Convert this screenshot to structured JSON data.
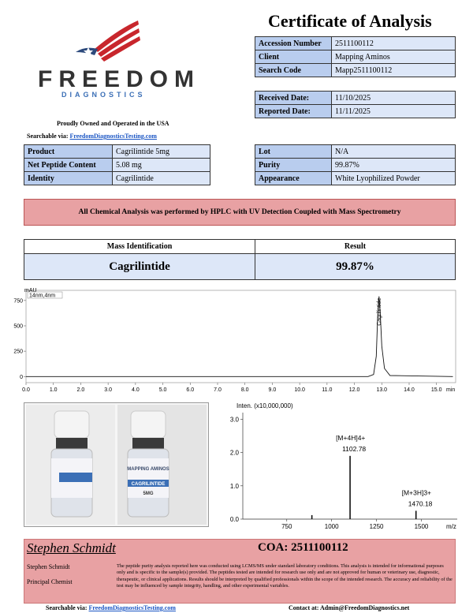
{
  "header": {
    "logo_name": "FREEDOM",
    "logo_sub": "DIAGNOSTICS",
    "tagline": "Proudly Owned and Operated in the USA",
    "search_label": "Searchable via:",
    "search_link": "FreedomDiagnosticsTesting.com",
    "title": "Certificate of Analysis"
  },
  "info_table": {
    "rows": [
      [
        "Accession Number",
        "2511100112"
      ],
      [
        "Client",
        "Mapping Aminos"
      ],
      [
        "Search Code",
        "Mapp2511100112"
      ]
    ]
  },
  "dates_table": {
    "rows": [
      [
        "Received Date:",
        "11/10/2025"
      ],
      [
        "Reported Date:",
        "11/11/2025"
      ]
    ]
  },
  "product_table": {
    "rows": [
      [
        "Product",
        "Cagrilintide 5mg"
      ],
      [
        "Net Peptide Content",
        "5.08 mg"
      ],
      [
        "Identity",
        "Cagrilintide"
      ]
    ]
  },
  "lot_table": {
    "rows": [
      [
        "Lot",
        "N/A"
      ],
      [
        "Purity",
        "99.87%"
      ],
      [
        "Appearance",
        "White Lyophilized Powder"
      ]
    ]
  },
  "banner": "All Chemical Analysis was performed by HPLC with UV Detection Coupled with Mass Spectrometry",
  "result_table": {
    "header": [
      "Mass Identification",
      "Result"
    ],
    "row": [
      "Cagrilintide",
      "99.87%"
    ]
  },
  "chromatogram": {
    "type": "line",
    "y_unit": "mAU",
    "channel": "14nm,4nm",
    "x_unit": "min",
    "peak_label": "Cagrilintide",
    "x": [
      0,
      12.5,
      12.7,
      12.8,
      12.85,
      12.9,
      12.95,
      13.0,
      13.1,
      13.3,
      15.6
    ],
    "values": [
      0,
      0,
      20,
      200,
      600,
      790,
      600,
      300,
      80,
      10,
      0
    ],
    "xlim": [
      0,
      15.7
    ],
    "ylim": [
      -60,
      850
    ],
    "xticks": [
      {
        "value": 0,
        "label": "0.0"
      },
      {
        "value": 1,
        "label": "1.0"
      },
      {
        "value": 2,
        "label": "2.0"
      },
      {
        "value": 3,
        "label": "3.0"
      },
      {
        "value": 4,
        "label": "4.0"
      },
      {
        "value": 5,
        "label": "5.0"
      },
      {
        "value": 6,
        "label": "6.0"
      },
      {
        "value": 7,
        "label": "7.0"
      },
      {
        "value": 8,
        "label": "8.0"
      },
      {
        "value": 9,
        "label": "9.0"
      },
      {
        "value": 10,
        "label": "10.0"
      },
      {
        "value": 11,
        "label": "11.0"
      },
      {
        "value": 12,
        "label": "12.0"
      },
      {
        "value": 13,
        "label": "13.0"
      },
      {
        "value": 14,
        "label": "14.0"
      },
      {
        "value": 15,
        "label": "15.0"
      }
    ],
    "yticks": [
      0,
      250,
      500,
      750
    ]
  },
  "photo": {
    "labels": [
      "MAPPING AMINOS",
      "CAGRILINTIDE",
      "5MG"
    ]
  },
  "mass_spectrum": {
    "type": "bar",
    "y_label": "Inten. (x10,000,000)",
    "x_unit": "m/z",
    "x": [
      890,
      1102.78,
      1470.18
    ],
    "values": [
      0.12,
      1.9,
      0.25
    ],
    "ion_labels": [
      null,
      "[M+4H]4+",
      "[M+3H]3+"
    ],
    "xlim": [
      505,
      1700
    ],
    "ylim": [
      0,
      3.2
    ],
    "xticks": [
      750,
      1000,
      1250,
      1500
    ],
    "yticks": [
      {
        "value": 0,
        "label": "0.0"
      },
      {
        "value": 1,
        "label": "1.0"
      },
      {
        "value": 2,
        "label": "2.0"
      },
      {
        "value": 3,
        "label": "3.0"
      }
    ]
  },
  "footer": {
    "signature": "Stephen Schmidt",
    "coa": "COA: 2511100112",
    "name": "Stephen Schmidt",
    "role": "Principal Chemist",
    "disclaimer": "The peptide purity analysis reported here was conducted using LCMS/MS under standard laboratory conditions. This analysis is intended for informational purposes only and is specific to the sample(s) provided. The peptides tested are intended for research use only and are not approved for human or veterinary use, diagnostic, therapeutic, or clinical applications. Results should be interpreted by qualified professionals within the scope of the intended research. The accuracy and reliability of the test may be influenced by sample integrity, handling, and other experimental variables.",
    "search_label": "Searchable via:",
    "search_link": "FreedomDiagnosticsTesting.com",
    "contact": "Contact at: Admin@FreedomDiagnostics.net"
  }
}
